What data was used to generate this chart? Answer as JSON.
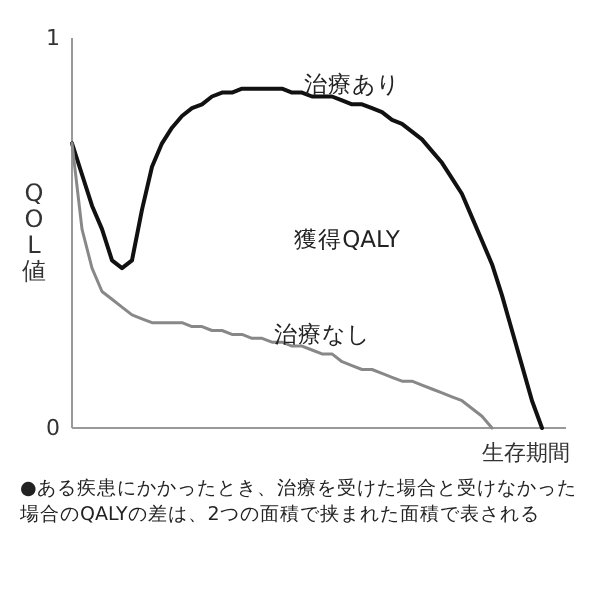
{
  "chart_data": {
    "type": "line",
    "xlabel": "生存期間",
    "ylabel": "QOL値",
    "categories": [
      null,
      null,
      null,
      null,
      null,
      null,
      null,
      null,
      null,
      null,
      null,
      null,
      null,
      null,
      null,
      null,
      null,
      null,
      null,
      null,
      null,
      null,
      null,
      null,
      null,
      null,
      null,
      null,
      null,
      null,
      null,
      null,
      null,
      null,
      null,
      null,
      null,
      null,
      null,
      null,
      null,
      null,
      null,
      null,
      null,
      null,
      null,
      null
    ],
    "series": [
      {
        "name": "治療あり",
        "color": "#111111",
        "values": [
          0.73,
          0.65,
          0.57,
          0.51,
          0.43,
          0.41,
          0.43,
          0.56,
          0.67,
          0.73,
          0.77,
          0.8,
          0.82,
          0.83,
          0.85,
          0.86,
          0.86,
          0.87,
          0.87,
          0.87,
          0.87,
          0.87,
          0.86,
          0.86,
          0.85,
          0.85,
          0.85,
          0.84,
          0.83,
          0.83,
          0.82,
          0.81,
          0.79,
          0.78,
          0.76,
          0.74,
          0.71,
          0.68,
          0.64,
          0.6,
          0.54,
          0.48,
          0.42,
          0.34,
          0.25,
          0.16,
          0.07,
          0
        ]
      },
      {
        "name": "治療なし",
        "color": "#888888",
        "values": [
          0.73,
          0.51,
          0.41,
          0.35,
          0.33,
          0.31,
          0.29,
          0.28,
          0.27,
          0.27,
          0.27,
          0.27,
          0.26,
          0.26,
          0.25,
          0.25,
          0.24,
          0.24,
          0.23,
          0.23,
          0.22,
          0.22,
          0.21,
          0.21,
          0.2,
          0.19,
          0.19,
          0.17,
          0.16,
          0.15,
          0.15,
          0.14,
          0.13,
          0.12,
          0.12,
          0.11,
          0.1,
          0.09,
          0.08,
          0.07,
          0.05,
          0.03,
          0,
          null,
          null,
          null,
          null,
          null
        ]
      }
    ],
    "ylim": [
      0,
      1
    ],
    "yticks": [
      0,
      1
    ],
    "grid": false,
    "legend": false,
    "marker": "none",
    "line_style": "solid",
    "annotations": [
      "獲得QALY",
      "●ある疾患にかかったとき、治療を受けた場合と受けなかった場合のQALYの差は、2つの面積で挟まれた面積で表される"
    ]
  }
}
